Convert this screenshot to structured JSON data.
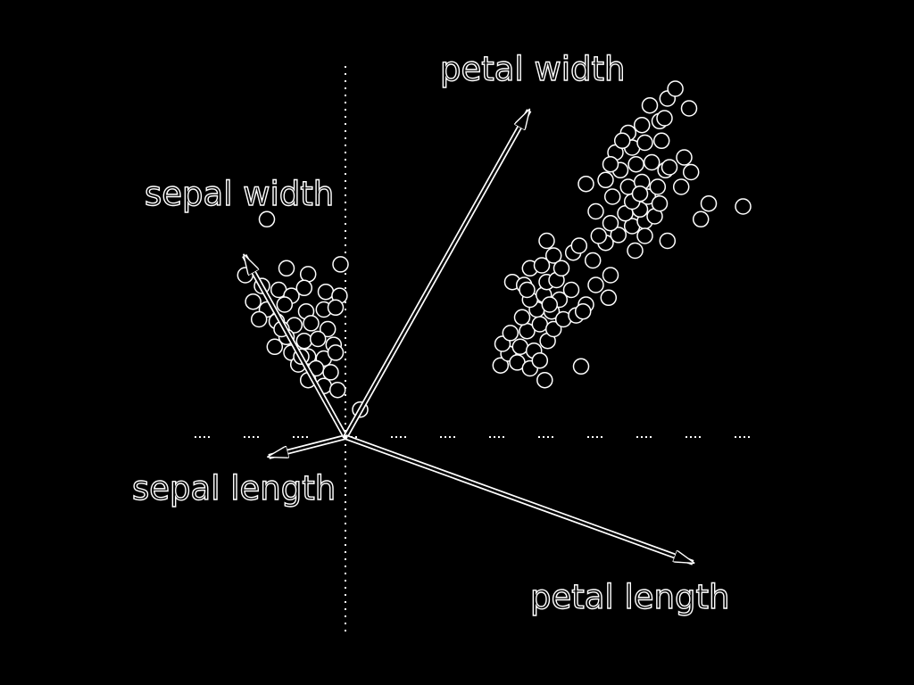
{
  "colors": {
    "background": "#000000",
    "foreground": "#ffffff"
  },
  "chart_data": {
    "type": "scatter",
    "title": "",
    "xlabel": "",
    "ylabel": "",
    "grid": false,
    "variables": [
      {
        "name": "sepal length",
        "x": -0.78,
        "y": -0.2
      },
      {
        "name": "sepal width",
        "x": -1.03,
        "y": 1.85
      },
      {
        "name": "petal width",
        "x": 1.87,
        "y": 3.33
      },
      {
        "name": "petal length",
        "x": 3.54,
        "y": -1.28
      }
    ],
    "points": [
      [
        -0.8,
        2.22
      ],
      [
        -0.6,
        1.72
      ],
      [
        -0.38,
        1.66
      ],
      [
        -0.05,
        1.76
      ],
      [
        -1.02,
        1.65
      ],
      [
        -0.85,
        1.54
      ],
      [
        -0.68,
        1.5
      ],
      [
        -0.55,
        1.44
      ],
      [
        -0.42,
        1.52
      ],
      [
        -0.2,
        1.48
      ],
      [
        -0.06,
        1.44
      ],
      [
        -0.94,
        1.38
      ],
      [
        -0.8,
        1.3
      ],
      [
        -0.62,
        1.35
      ],
      [
        -0.4,
        1.28
      ],
      [
        -0.22,
        1.3
      ],
      [
        -0.1,
        1.32
      ],
      [
        -0.88,
        1.2
      ],
      [
        -0.7,
        1.18
      ],
      [
        -0.52,
        1.14
      ],
      [
        -0.35,
        1.16
      ],
      [
        -0.18,
        1.1
      ],
      [
        -0.6,
        1.02
      ],
      [
        -0.42,
        0.98
      ],
      [
        -0.28,
        1.0
      ],
      [
        -0.12,
        0.94
      ],
      [
        -0.72,
        0.92
      ],
      [
        -0.55,
        0.86
      ],
      [
        -0.38,
        0.82
      ],
      [
        -0.22,
        0.8
      ],
      [
        -0.1,
        0.86
      ],
      [
        -0.48,
        0.74
      ],
      [
        -0.3,
        0.7
      ],
      [
        -0.15,
        0.66
      ],
      [
        -0.38,
        0.58
      ],
      [
        -0.22,
        0.52
      ],
      [
        -0.08,
        0.48
      ],
      [
        -0.45,
        0.82
      ],
      [
        -0.65,
        1.1
      ],
      [
        0.15,
        0.28
      ],
      [
        1.58,
        0.73
      ],
      [
        1.66,
        0.85
      ],
      [
        1.75,
        0.76
      ],
      [
        1.88,
        0.7
      ],
      [
        1.6,
        0.95
      ],
      [
        1.78,
        0.92
      ],
      [
        1.92,
        0.88
      ],
      [
        2.06,
        0.98
      ],
      [
        1.98,
        0.78
      ],
      [
        2.4,
        0.72
      ],
      [
        1.68,
        1.06
      ],
      [
        1.85,
        1.08
      ],
      [
        1.98,
        1.15
      ],
      [
        2.12,
        1.1
      ],
      [
        1.8,
        1.22
      ],
      [
        1.95,
        1.3
      ],
      [
        2.1,
        1.28
      ],
      [
        2.22,
        1.2
      ],
      [
        2.35,
        1.24
      ],
      [
        1.88,
        1.4
      ],
      [
        2.02,
        1.45
      ],
      [
        2.18,
        1.4
      ],
      [
        1.7,
        1.58
      ],
      [
        1.82,
        1.55
      ],
      [
        2.05,
        1.58
      ],
      [
        2.15,
        1.6
      ],
      [
        1.88,
        1.72
      ],
      [
        2.0,
        1.75
      ],
      [
        2.12,
        1.85
      ],
      [
        1.85,
        1.5
      ],
      [
        2.45,
        1.35
      ],
      [
        2.55,
        1.55
      ],
      [
        2.7,
        1.65
      ],
      [
        2.2,
        1.72
      ],
      [
        2.08,
        1.35
      ],
      [
        2.32,
        1.88
      ],
      [
        2.05,
        2.0
      ],
      [
        2.3,
        1.5
      ],
      [
        2.42,
        1.28
      ],
      [
        2.68,
        1.42
      ],
      [
        2.52,
        1.8
      ],
      [
        2.03,
        0.58
      ],
      [
        2.38,
        1.95
      ],
      [
        2.65,
        1.98
      ],
      [
        2.78,
        2.06
      ],
      [
        2.92,
        2.15
      ],
      [
        3.05,
        2.2
      ],
      [
        2.7,
        2.18
      ],
      [
        2.85,
        2.28
      ],
      [
        3.0,
        2.32
      ],
      [
        3.15,
        2.25
      ],
      [
        2.92,
        2.4
      ],
      [
        3.08,
        2.45
      ],
      [
        3.2,
        2.38
      ],
      [
        2.55,
        2.3
      ],
      [
        2.72,
        2.45
      ],
      [
        2.88,
        2.55
      ],
      [
        3.02,
        2.6
      ],
      [
        3.18,
        2.55
      ],
      [
        2.65,
        2.62
      ],
      [
        2.8,
        2.72
      ],
      [
        2.96,
        2.78
      ],
      [
        3.12,
        2.8
      ],
      [
        3.26,
        2.72
      ],
      [
        2.75,
        2.9
      ],
      [
        2.92,
        2.95
      ],
      [
        3.05,
        3.0
      ],
      [
        3.22,
        3.02
      ],
      [
        2.88,
        3.1
      ],
      [
        3.02,
        3.18
      ],
      [
        3.2,
        3.22
      ],
      [
        3.1,
        3.38
      ],
      [
        3.28,
        3.45
      ],
      [
        3.36,
        3.55
      ],
      [
        3.5,
        3.35
      ],
      [
        2.58,
        2.05
      ],
      [
        2.95,
        1.9
      ],
      [
        3.28,
        2.0
      ],
      [
        3.05,
        2.05
      ],
      [
        3.42,
        2.55
      ],
      [
        3.3,
        2.75
      ],
      [
        3.52,
        2.7
      ],
      [
        3.7,
        2.38
      ],
      [
        4.05,
        2.35
      ],
      [
        3.45,
        2.85
      ],
      [
        3.25,
        3.25
      ],
      [
        2.82,
        3.02
      ],
      [
        2.7,
        2.78
      ],
      [
        3.62,
        2.22
      ],
      [
        3.0,
        2.48
      ],
      [
        2.45,
        2.58
      ]
    ]
  }
}
